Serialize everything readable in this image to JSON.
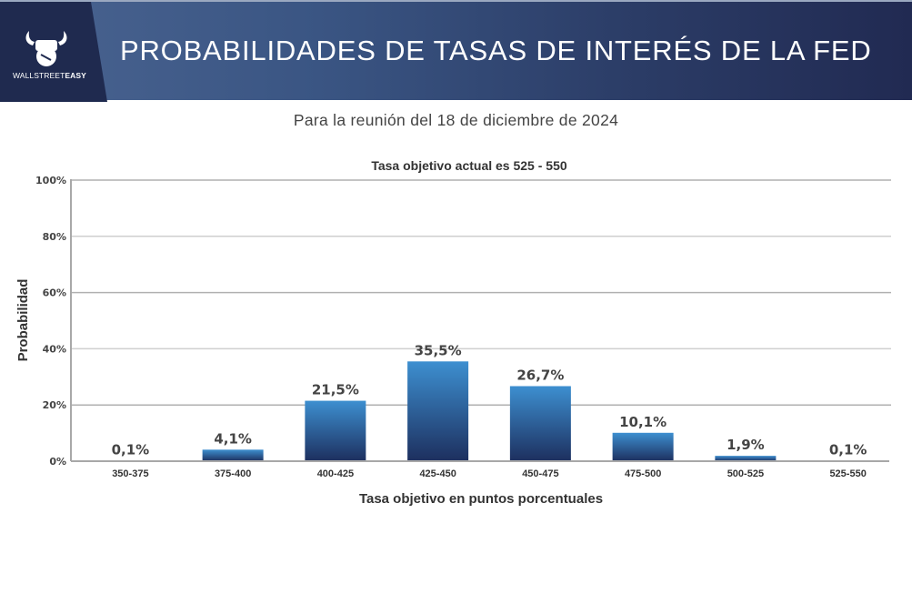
{
  "header": {
    "logo_text_regular": "WALLSTREET",
    "logo_text_bold": "EASY",
    "title": "PROBABILIDADES DE TASAS DE INTERÉS DE LA FED"
  },
  "subtitle": "Para la reunión del 18 de diciembre de 2024",
  "colors": {
    "banner_dark": "#1f2a4f",
    "banner_light": "#4a6491",
    "bar_top": "#3d8fd0",
    "bar_bottom": "#1d2f5e"
  },
  "chart_data": {
    "type": "bar",
    "title": "Tasa objetivo actual es 525 - 550",
    "xlabel": "Tasa objetivo en puntos porcentuales",
    "ylabel": "Probabilidad",
    "ylim": [
      0,
      100
    ],
    "yticks": [
      0,
      20,
      40,
      60,
      80,
      100
    ],
    "ytick_labels": [
      "0%",
      "20%",
      "40%",
      "60%",
      "80%",
      "100%"
    ],
    "grid": true,
    "categories": [
      "350-375",
      "375-400",
      "400-425",
      "425-450",
      "450-475",
      "475-500",
      "500-525",
      "525-550"
    ],
    "values": [
      0.1,
      4.1,
      21.5,
      35.5,
      26.7,
      10.1,
      1.9,
      0.1
    ],
    "value_labels": [
      "0,1%",
      "4,1%",
      "21,5%",
      "35,5%",
      "26,7%",
      "10,1%",
      "1,9%",
      "0,1%"
    ]
  }
}
